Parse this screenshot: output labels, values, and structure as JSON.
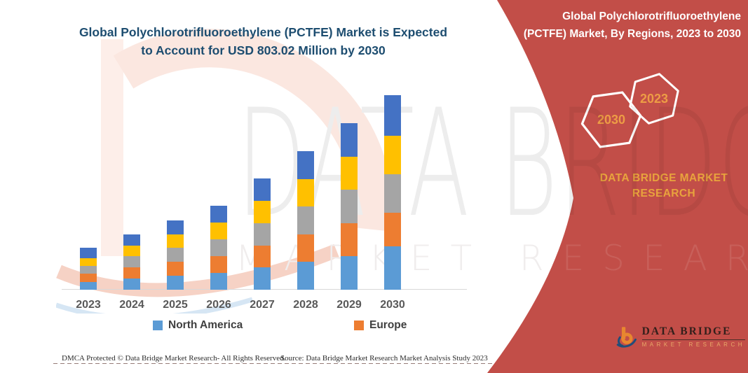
{
  "header": {
    "title_line1": "Global Polychlorotrifluoroethylene (PCTFE) Market is Expected",
    "title_line2": "to Account for USD 803.02 Million by 2030",
    "title_color": "#1d4d70"
  },
  "side_panel": {
    "title": "Global Polychlorotrifluoroethylene (PCTFE) Market, By Regions, 2023 to 2030",
    "hexagons": [
      {
        "label": "2030"
      },
      {
        "label": "2023"
      }
    ],
    "org_name": "DATA BRIDGE MARKET RESEARCH",
    "bg_color": "#c24e48",
    "accent_gold": "#e8a33d"
  },
  "watermark": {
    "line1": "DATA BRIDGE",
    "line2": "MARKET RESEARCH"
  },
  "brand_logo": {
    "name": "DATA BRIDGE",
    "tagline": "MARKET RESEARCH"
  },
  "footer": {
    "dmca": "DMCA Protected © Data Bridge Market Research-  All Rights Reserved.",
    "source": "Source: Data Bridge Market Research  Market Analysis Study 2023"
  },
  "chart_data": {
    "type": "bar",
    "stacked": true,
    "title": "Global Polychlorotrifluoroethylene (PCTFE) Market is Expected to Account for USD 803.02 Million by 2030",
    "categories": [
      "2023",
      "2024",
      "2025",
      "2026",
      "2027",
      "2028",
      "2029",
      "2030"
    ],
    "series": [
      {
        "name": "North America",
        "color": "#5B9BD5",
        "values": [
          11,
          16,
          20,
          24,
          32,
          40,
          48,
          62
        ]
      },
      {
        "name": "Europe",
        "color": "#ED7D31",
        "values": [
          12,
          16,
          20,
          24,
          31,
          39,
          47,
          48
        ]
      },
      {
        "name": "Unlabeled (gray)",
        "color": "#A5A5A5",
        "values": [
          11,
          16,
          20,
          24,
          32,
          40,
          48,
          55
        ]
      },
      {
        "name": "Unlabeled (yellow)",
        "color": "#FFC000",
        "values": [
          11,
          15,
          19,
          24,
          32,
          39,
          47,
          55
        ]
      },
      {
        "name": "Unlabeled (dark blue)",
        "color": "#4472C4",
        "values": [
          15,
          16,
          20,
          24,
          32,
          40,
          48,
          58
        ]
      }
    ],
    "stack_order_bottom_to_top": [
      "North America",
      "Europe",
      "Unlabeled (gray)",
      "Unlabeled (yellow)",
      "Unlabeled (dark blue)"
    ],
    "legend": [
      {
        "label": "North America",
        "color": "#5B9BD5"
      },
      {
        "label": "Europe",
        "color": "#ED7D31"
      }
    ],
    "legend_position": "bottom",
    "value_axis_shown": false,
    "grid": false,
    "units": "relative height units (no value axis labels shown in image)",
    "note": "Stacked totals rise from ~60 units (2023) to ~278 units (2030); per the title, 2030 corresponds to USD 803.02 Million."
  }
}
